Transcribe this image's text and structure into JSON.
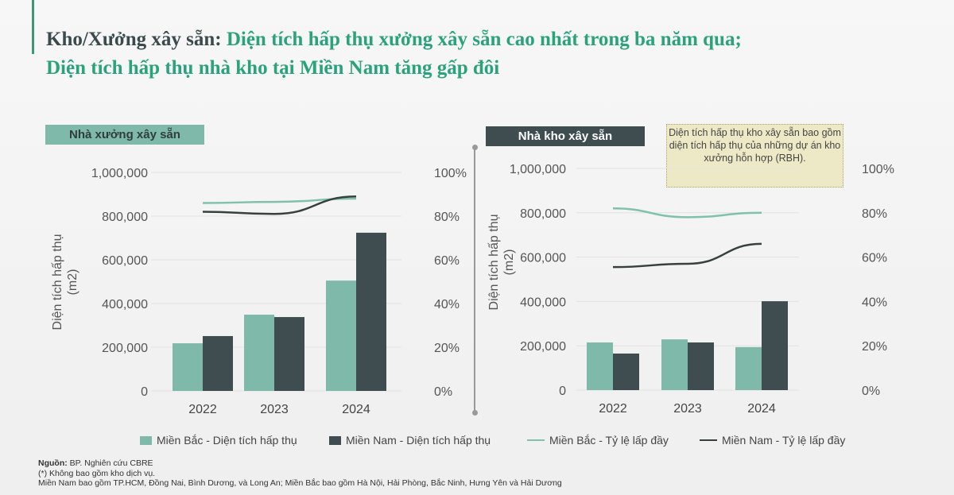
{
  "title": {
    "prefix": "Kho/Xưởng xây sẵn:",
    "line1": " Diện tích hấp thụ xưởng xây sẵn cao nhất trong ba năm qua;",
    "line2": "Diện tích hấp thụ nhà kho tại Miền Nam tăng gấp đôi"
  },
  "note": "Diện tích hấp thụ kho xây sẵn bao gồm diện tích hấp thụ của những dự án kho xưởng hỗn hợp (RBH).",
  "legend": [
    "Miền Bắc - Diện tích hấp thụ",
    "Miền Nam - Diện tích hấp thụ",
    "Miền Bắc - Tỷ lệ lấp đầy",
    "Miền Nam - Tỷ lệ lấp đầy"
  ],
  "colors": {
    "north_bar": "#7fb9a9",
    "south_bar": "#3f4d50",
    "north_line": "#7fc1ad",
    "south_line": "#36403f"
  },
  "footer": {
    "source_label": "Nguồn:",
    "source": " BP. Nghiên cứu CBRE",
    "note1": "(*) Không bao gồm kho dịch vụ.",
    "note2": "Miền Nam bao gồm TP.HCM, Đồng Nai, Bình Dương, và Long An; Miền Bắc bao gồm Hà Nội, Hải Phòng, Bắc Ninh, Hưng Yên và Hải Dương"
  },
  "chart_data": [
    {
      "type": "bar+line",
      "title": "Nhà xưởng xây sẵn",
      "categories": [
        "2022",
        "2023",
        "2024"
      ],
      "ylabel": "Diện tích hấp thụ (m2)",
      "ylim": [
        0,
        1000000
      ],
      "y2lim": [
        0,
        100
      ],
      "yticks": [
        "0",
        "200,000",
        "400,000",
        "600,000",
        "800,000",
        "1,000,000"
      ],
      "y2ticks": [
        "0%",
        "20%",
        "40%",
        "60%",
        "80%",
        "100%"
      ],
      "series": [
        {
          "name": "Miền Bắc - Diện tích hấp thụ",
          "kind": "bar",
          "values": [
            218000,
            349000,
            505000
          ]
        },
        {
          "name": "Miền Nam - Diện tích hấp thụ",
          "kind": "bar",
          "values": [
            251000,
            338000,
            724000
          ]
        },
        {
          "name": "Miền Bắc - Tỷ lệ lấp đầy",
          "kind": "line",
          "axis": "right",
          "values": [
            86,
            86.5,
            88
          ]
        },
        {
          "name": "Miền Nam - Tỷ lệ lấp đầy",
          "kind": "line",
          "axis": "right",
          "values": [
            82,
            81,
            89
          ]
        }
      ]
    },
    {
      "type": "bar+line",
      "title": "Nhà kho xây sẵn",
      "categories": [
        "2022",
        "2023",
        "2024"
      ],
      "ylabel": "Diện tích hấp thụ (m2)",
      "ylim": [
        0,
        1000000
      ],
      "y2lim": [
        0,
        100
      ],
      "yticks": [
        "0",
        "200,000",
        "400,000",
        "600,000",
        "800,000",
        "1,000,000"
      ],
      "y2ticks": [
        "0%",
        "20%",
        "40%",
        "60%",
        "80%",
        "100%"
      ],
      "series": [
        {
          "name": "Miền Bắc - Diện tích hấp thụ",
          "kind": "bar",
          "values": [
            215000,
            229000,
            194000
          ]
        },
        {
          "name": "Miền Nam - Diện tích hấp thụ",
          "kind": "bar",
          "values": [
            165000,
            215000,
            401000
          ]
        },
        {
          "name": "Miền Bắc - Tỷ lệ lấp đầy",
          "kind": "line",
          "axis": "right",
          "values": [
            82,
            78,
            80
          ]
        },
        {
          "name": "Miền Nam - Tỷ lệ lấp đầy",
          "kind": "line",
          "axis": "right",
          "values": [
            55.5,
            57,
            66
          ]
        }
      ]
    }
  ]
}
